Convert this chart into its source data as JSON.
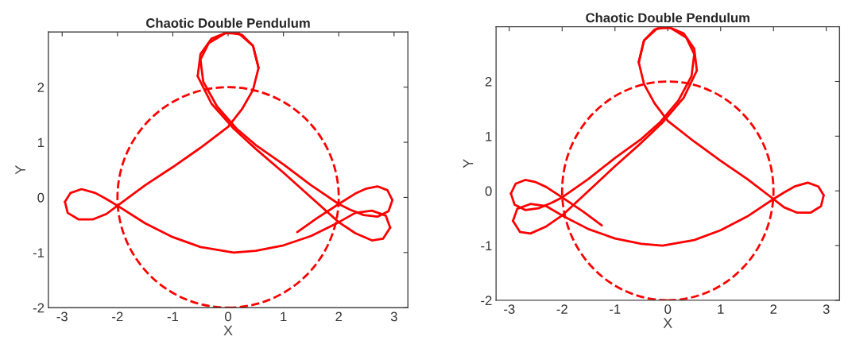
{
  "chart_data": [
    {
      "type": "line",
      "title": "Chaotic Double Pendulum",
      "xlabel": "X",
      "ylabel": "Y",
      "xlim": [
        -3.25,
        3.25
      ],
      "ylim": [
        -2,
        3
      ],
      "xticks": [
        -3,
        -2,
        -1,
        0,
        1,
        2,
        3
      ],
      "yticks": [
        -2,
        -1,
        0,
        1,
        2
      ],
      "series": [
        {
          "color": "#ff0000",
          "line_style": "solid",
          "x": [
            1.25,
            1.6,
            2.0,
            2.3,
            2.5,
            2.7,
            2.88,
            2.97
          ],
          "values": [
            -0.63,
            -0.38,
            -0.12,
            0.07,
            0.16,
            0.2,
            0.13,
            -0.05
          ]
        },
        {
          "color": "#ff0000",
          "line_style": "solid",
          "x": [
            2.97,
            2.9,
            2.7,
            2.45,
            2.2,
            2.0,
            1.5,
            1.0,
            0.5,
            0.15,
            -0.2,
            -0.45,
            -0.5
          ],
          "values": [
            -0.05,
            -0.25,
            -0.35,
            -0.32,
            -0.22,
            -0.12,
            0.22,
            0.6,
            0.95,
            1.25,
            1.65,
            2.1,
            2.5
          ]
        },
        {
          "color": "#ff0000",
          "line_style": "solid",
          "x": [
            -0.5,
            -0.35,
            -0.05,
            0.2,
            0.45,
            0.55
          ],
          "values": [
            2.5,
            2.8,
            2.98,
            2.97,
            2.75,
            2.35
          ]
        },
        {
          "color": "#ff0000",
          "line_style": "solid",
          "x": [
            0.55,
            0.45,
            0.25,
            0.0,
            -0.5,
            -1.0,
            -1.5,
            -2.0,
            -2.2,
            -2.45,
            -2.7,
            -2.9,
            -2.95
          ],
          "values": [
            2.35,
            1.95,
            1.6,
            1.28,
            0.9,
            0.55,
            0.22,
            -0.15,
            -0.3,
            -0.4,
            -0.4,
            -0.28,
            -0.08
          ]
        },
        {
          "color": "#ff0000",
          "line_style": "solid",
          "x": [
            -2.95,
            -2.85,
            -2.65,
            -2.4,
            -2.2,
            -2.0,
            -1.5,
            -1.0,
            -0.5,
            0.1,
            0.5,
            1.0,
            1.5,
            2.0,
            2.3,
            2.6,
            2.85,
            2.93
          ],
          "values": [
            -0.08,
            0.08,
            0.15,
            0.08,
            -0.03,
            -0.15,
            -0.47,
            -0.72,
            -0.9,
            -1.0,
            -0.97,
            -0.87,
            -0.7,
            -0.45,
            -0.28,
            -0.24,
            -0.33,
            -0.55
          ]
        },
        {
          "color": "#ff0000",
          "line_style": "solid",
          "x": [
            2.93,
            2.8,
            2.6,
            2.3,
            2.0,
            1.5,
            1.0,
            0.5,
            0.1,
            -0.3,
            -0.55
          ],
          "values": [
            -0.55,
            -0.75,
            -0.78,
            -0.65,
            -0.45,
            0.0,
            0.45,
            0.88,
            1.25,
            1.7,
            2.2
          ]
        },
        {
          "color": "#ff0000",
          "line_style": "solid",
          "x": [
            -0.55,
            -0.5,
            -0.3,
            0.0,
            0.25,
            0.45,
            0.55
          ],
          "values": [
            2.2,
            2.6,
            2.88,
            3.0,
            2.95,
            2.75,
            2.35
          ]
        }
      ]
    },
    {
      "type": "line",
      "title": "Chaotic Double Pendulum",
      "xlabel": "X",
      "ylabel": "Y",
      "xlim": [
        -3.25,
        3.25
      ],
      "ylim": [
        -2,
        3
      ],
      "xticks": [
        -3,
        -2,
        -1,
        0,
        1,
        2,
        3
      ],
      "yticks": [
        -2,
        -1,
        0,
        1,
        2
      ],
      "series": [
        {
          "color": "#ff0000",
          "line_style": "solid",
          "x": [
            -1.25,
            -1.6,
            -2.0,
            -2.3,
            -2.5,
            -2.7,
            -2.88,
            -2.97
          ],
          "values": [
            -0.63,
            -0.38,
            -0.12,
            0.07,
            0.16,
            0.2,
            0.13,
            -0.05
          ]
        },
        {
          "color": "#ff0000",
          "line_style": "solid",
          "x": [
            -2.97,
            -2.9,
            -2.7,
            -2.45,
            -2.2,
            -2.0,
            -1.5,
            -1.0,
            -0.5,
            -0.15,
            0.2,
            0.45,
            0.5
          ],
          "values": [
            -0.05,
            -0.25,
            -0.35,
            -0.32,
            -0.22,
            -0.12,
            0.22,
            0.6,
            0.95,
            1.25,
            1.65,
            2.1,
            2.5
          ]
        },
        {
          "color": "#ff0000",
          "line_style": "solid",
          "x": [
            0.5,
            0.35,
            0.05,
            -0.2,
            -0.45,
            -0.55
          ],
          "values": [
            2.5,
            2.8,
            2.98,
            2.97,
            2.75,
            2.35
          ]
        },
        {
          "color": "#ff0000",
          "line_style": "solid",
          "x": [
            -0.55,
            -0.45,
            -0.25,
            0.0,
            0.5,
            1.0,
            1.5,
            2.0,
            2.2,
            2.45,
            2.7,
            2.9,
            2.95
          ],
          "values": [
            2.35,
            1.95,
            1.6,
            1.28,
            0.9,
            0.55,
            0.22,
            -0.15,
            -0.3,
            -0.4,
            -0.4,
            -0.28,
            -0.08
          ]
        },
        {
          "color": "#ff0000",
          "line_style": "solid",
          "x": [
            2.95,
            2.85,
            2.65,
            2.4,
            2.2,
            2.0,
            1.5,
            1.0,
            0.5,
            -0.1,
            -0.5,
            -1.0,
            -1.5,
            -2.0,
            -2.3,
            -2.6,
            -2.85,
            -2.93
          ],
          "values": [
            -0.08,
            0.08,
            0.15,
            0.08,
            -0.03,
            -0.15,
            -0.47,
            -0.72,
            -0.9,
            -1.0,
            -0.97,
            -0.87,
            -0.7,
            -0.45,
            -0.28,
            -0.24,
            -0.33,
            -0.55
          ]
        },
        {
          "color": "#ff0000",
          "line_style": "solid",
          "x": [
            -2.93,
            -2.8,
            -2.6,
            -2.3,
            -2.0,
            -1.5,
            -1.0,
            -0.5,
            -0.1,
            0.3,
            0.55
          ],
          "values": [
            -0.55,
            -0.75,
            -0.78,
            -0.65,
            -0.45,
            0.0,
            0.45,
            0.88,
            1.25,
            1.7,
            2.2
          ]
        },
        {
          "color": "#ff0000",
          "line_style": "solid",
          "x": [
            0.55,
            0.5,
            0.3,
            0.0,
            -0.25,
            -0.45,
            -0.55
          ],
          "values": [
            2.2,
            2.6,
            2.88,
            3.0,
            2.95,
            2.75,
            2.35
          ]
        }
      ]
    }
  ]
}
